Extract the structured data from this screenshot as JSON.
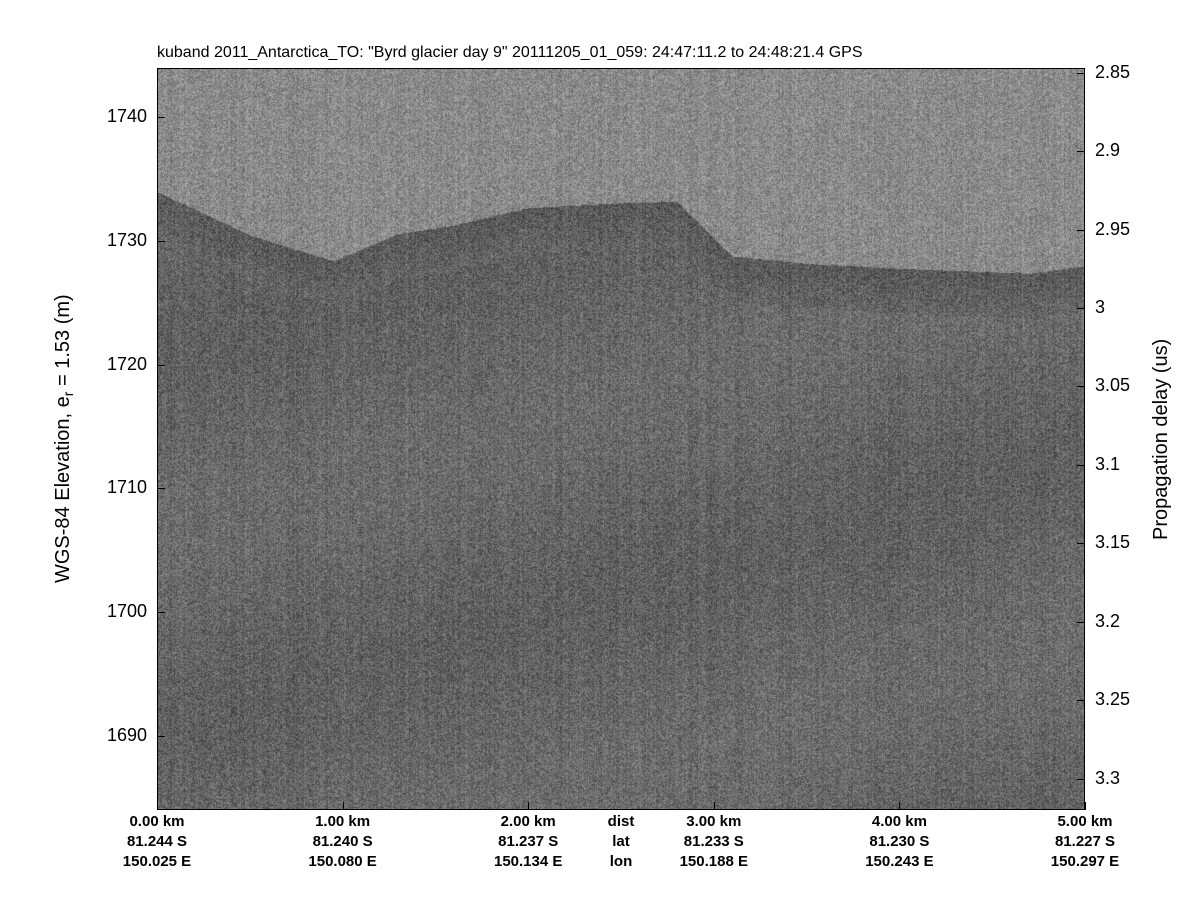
{
  "chart_data": {
    "type": "heatmap",
    "title": "kuband 2011_Antarctica_TO: \"Byrd glacier day 9\"  20111205_01_059: 24:47:11.2 to 24:48:21.4 GPS",
    "ylabel_left": "WGS-84 Elevation, e",
    "ylabel_left_sub": "r",
    "ylabel_left_suffix": " = 1.53 (m)",
    "ylabel_right": "Propagation delay (us)",
    "yticks_left": [
      1740,
      1730,
      1720,
      1710,
      1700,
      1690
    ],
    "ylim_left": [
      1684,
      1744
    ],
    "yticks_right": [
      "2.85",
      "2.9",
      "2.95",
      "3",
      "3.05",
      "3.1",
      "3.15",
      "3.2",
      "3.25",
      "3.3"
    ],
    "ylim_right": [
      2.847,
      3.32
    ],
    "xlim_km": [
      0,
      5
    ],
    "colormap": "gray",
    "x_label_rows": {
      "dist": [
        "0.00 km",
        "1.00 km",
        "2.00 km",
        "3.00 km",
        "4.00 km",
        "5.00 km"
      ],
      "lat": [
        "81.244 S",
        "81.240 S",
        "81.237 S",
        "81.233 S",
        "81.230 S",
        "81.227 S"
      ],
      "lon": [
        "150.025 E",
        "150.080 E",
        "150.134 E",
        "150.188 E",
        "150.243 E",
        "150.297 E"
      ],
      "row_names": [
        "dist",
        "lat",
        "lon"
      ]
    },
    "surface_elevation_m": {
      "x_km": [
        0,
        0.5,
        0.95,
        1.3,
        1.6,
        2.0,
        2.5,
        2.8,
        3.0,
        3.1,
        3.5,
        4.0,
        4.7,
        5.0
      ],
      "y": [
        1734,
        1730.5,
        1728.4,
        1730.6,
        1731.3,
        1732.7,
        1733.1,
        1733.2,
        1730.2,
        1728.8,
        1728.2,
        1727.8,
        1727.4,
        1728
      ]
    }
  }
}
